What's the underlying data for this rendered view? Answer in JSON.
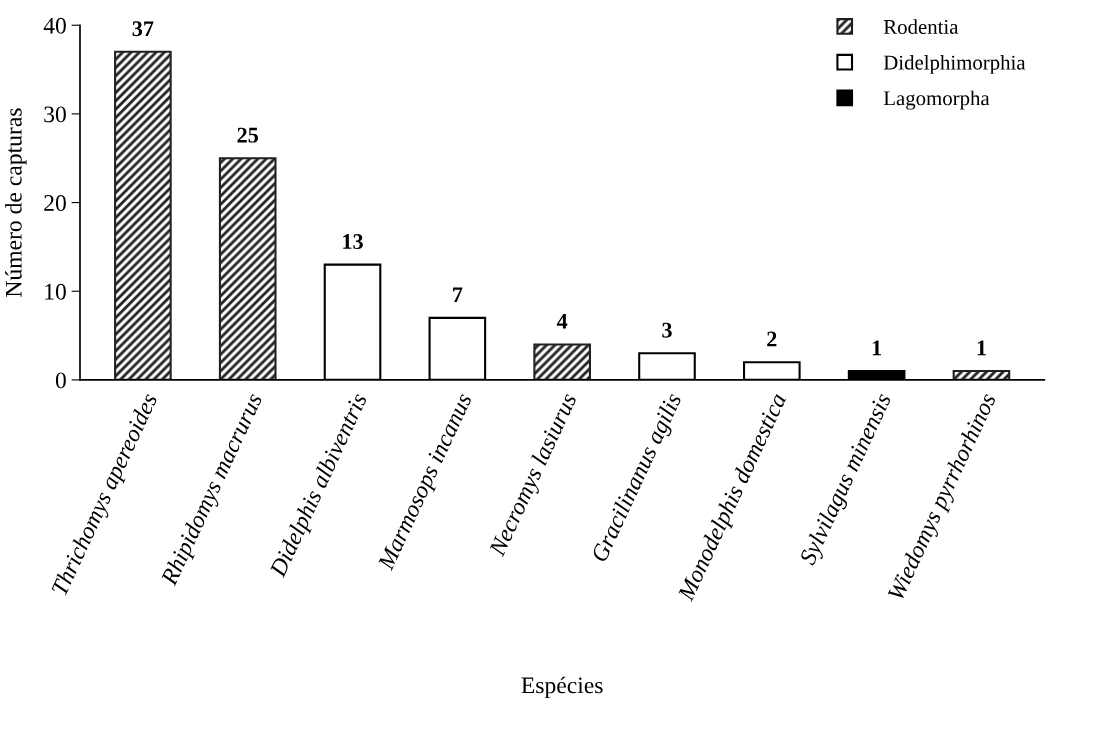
{
  "chart_data": {
    "type": "bar",
    "xlabel": "Espécies",
    "ylabel": "Número de capturas",
    "categories": [
      "Thrichomys apereoides",
      "Rhipidomys macrurus",
      "Didelphis albiventris",
      "Marmosops incanus",
      "Necromys lasiurus",
      "Gracilinanus agilis",
      "Monodelphis domestica",
      "Sylvilagus minensis",
      "Wiedomys pyrrhorhinos"
    ],
    "series": [
      {
        "name": "Rodentia",
        "color": "#202020",
        "values": [
          37,
          25,
          null,
          null,
          4,
          null,
          null,
          null,
          1
        ]
      },
      {
        "name": "Didelphimorphia",
        "color": "#ffffff",
        "values": [
          null,
          null,
          13,
          7,
          null,
          3,
          2,
          null,
          null
        ]
      },
      {
        "name": "Lagomorpha",
        "color": "#000000",
        "values": [
          null,
          null,
          null,
          null,
          null,
          null,
          null,
          1,
          null
        ]
      }
    ],
    "ylim": [
      0,
      40
    ],
    "yticks": [
      0,
      10,
      20,
      30,
      40
    ],
    "data_labels": true,
    "grid": false,
    "legend": "top right"
  }
}
